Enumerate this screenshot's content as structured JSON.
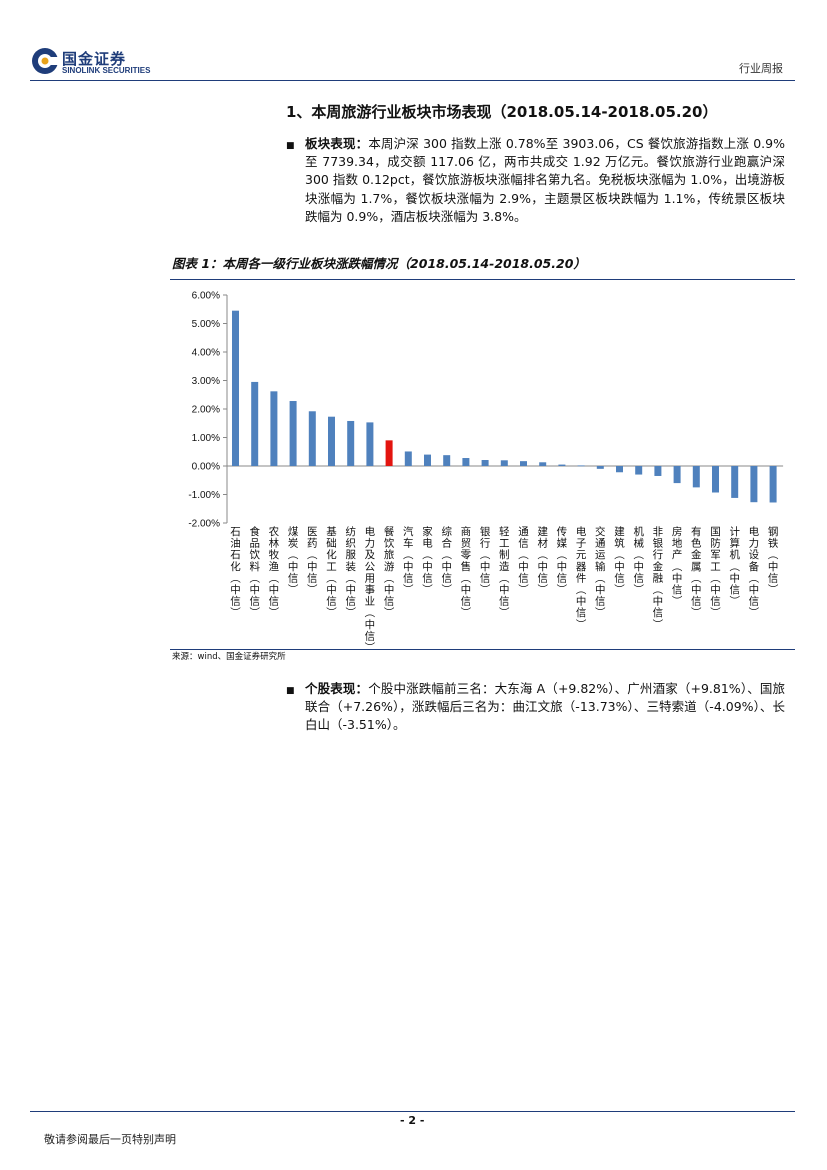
{
  "header": {
    "logo_cn": "国金证券",
    "logo_en": "SINOLINK SECURITIES",
    "doc_type": "行业周报",
    "brand_color": "#1f3d7a"
  },
  "section_title": "1、本周旅游行业板块市场表现（2018.05.14-2018.05.20）",
  "para1": {
    "label": "板块表现：",
    "text": "本周沪深 300 指数上涨 0.78%至 3903.06，CS 餐饮旅游指数上涨 0.9%至 7739.34，成交额 117.06 亿，两市共成交 1.92 万亿元。餐饮旅游行业跑赢沪深 300 指数 0.12pct，餐饮旅游板块涨幅排名第九名。免税板块涨幅为 1.0%，出境游板块涨幅为 1.7%，餐饮板块涨幅为 2.9%，主题景区板块跌幅为 1.1%，传统景区板块跌幅为 0.9%，酒店板块涨幅为 3.8%。"
  },
  "figure": {
    "caption": "图表 1：本周各一级行业板块涨跌幅情况（2018.05.14-2018.05.20）",
    "source": "来源：wind、国金证券研究所"
  },
  "chart_data": {
    "type": "bar",
    "categories": [
      "石油石化(中信)",
      "食品饮料(中信)",
      "农林牧渔(中信)",
      "煤炭(中信)",
      "医药(中信)",
      "基础化工(中信)",
      "纺织服装(中信)",
      "电力及公用事业(中信)",
      "餐饮旅游(中信)",
      "汽车(中信)",
      "家电(中信)",
      "综合(中信)",
      "商贸零售(中信)",
      "银行(中信)",
      "轻工制造(中信)",
      "通信(中信)",
      "建材(中信)",
      "传媒(中信)",
      "电子元器件(中信)",
      "交通运输(中信)",
      "建筑(中信)",
      "机械(中信)",
      "非银行金融(中信)",
      "房地产(中信)",
      "有色金属(中信)",
      "国防军工(中信)",
      "计算机(中信)",
      "电力设备(中信)",
      "钢铁(中信)"
    ],
    "values": [
      5.45,
      2.95,
      2.62,
      2.28,
      1.92,
      1.73,
      1.58,
      1.53,
      0.9,
      0.51,
      0.4,
      0.38,
      0.28,
      0.21,
      0.2,
      0.17,
      0.13,
      0.05,
      0.02,
      -0.1,
      -0.22,
      -0.3,
      -0.35,
      -0.6,
      -0.75,
      -0.93,
      -1.12,
      -1.27,
      -1.28
    ],
    "highlight_index": 8,
    "bar_color": "#4f81bd",
    "highlight_color": "#e3140f",
    "ylim": [
      -2,
      6
    ],
    "yticks": [
      "6.00%",
      "5.00%",
      "4.00%",
      "3.00%",
      "2.00%",
      "1.00%",
      "0.00%",
      "-1.00%",
      "-2.00%"
    ],
    "title": "",
    "xlabel": "",
    "ylabel": ""
  },
  "para2": {
    "label": "个股表现：",
    "text": "个股中涨跌幅前三名：大东海 A（+9.82%）、广州酒家（+9.81%）、国旅联合（+7.26%），涨跌幅后三名为：曲江文旅（-13.73%）、三特索道（-4.09%）、长白山（-3.51%）。"
  },
  "footer": {
    "page_no": "- 2 -",
    "disclaimer": "敬请参阅最后一页特别声明"
  }
}
